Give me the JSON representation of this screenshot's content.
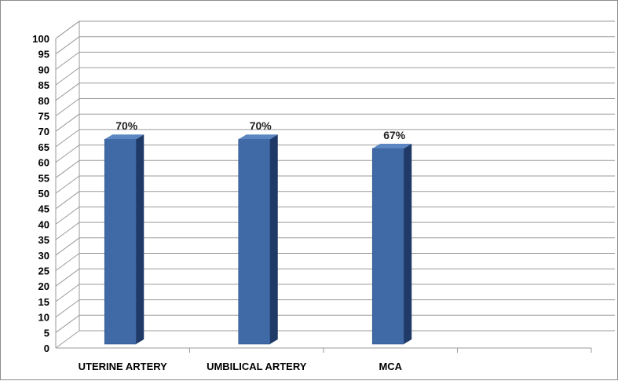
{
  "chart_data": {
    "type": "bar",
    "style": "3d-column",
    "categories": [
      "UTERINE ARTERY",
      "UMBILICAL ARTERY",
      "MCA",
      ""
    ],
    "values": [
      70,
      70,
      67,
      null
    ],
    "data_labels": [
      "70%",
      "70%",
      "67%",
      ""
    ],
    "ylim": [
      0,
      100
    ],
    "ytick_step": 5,
    "title": "",
    "xlabel": "",
    "ylabel": "",
    "grid": true,
    "legend": "none",
    "colors": {
      "bar_front": "#3f6aa6",
      "bar_side": "#1f3a66",
      "bar_top": "#5b86c2",
      "grid": "#9a9a9a"
    }
  }
}
